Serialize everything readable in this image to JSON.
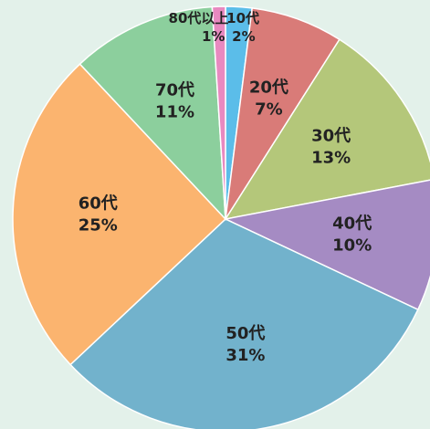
{
  "chart_data": {
    "type": "pie",
    "categories": [
      "10代",
      "20代",
      "30代",
      "40代",
      "50代",
      "60代",
      "70代",
      "80代以上"
    ],
    "values": [
      2,
      7,
      13,
      10,
      31,
      25,
      11,
      1
    ],
    "value_labels": [
      "2%",
      "7%",
      "13%",
      "10%",
      "31%",
      "25%",
      "11%",
      "1%"
    ],
    "colors": [
      "#5bbde9",
      "#d97b78",
      "#b4c77a",
      "#a58bc3",
      "#72b2cc",
      "#fbb46f",
      "#8ccf9d",
      "#e889c0"
    ]
  }
}
